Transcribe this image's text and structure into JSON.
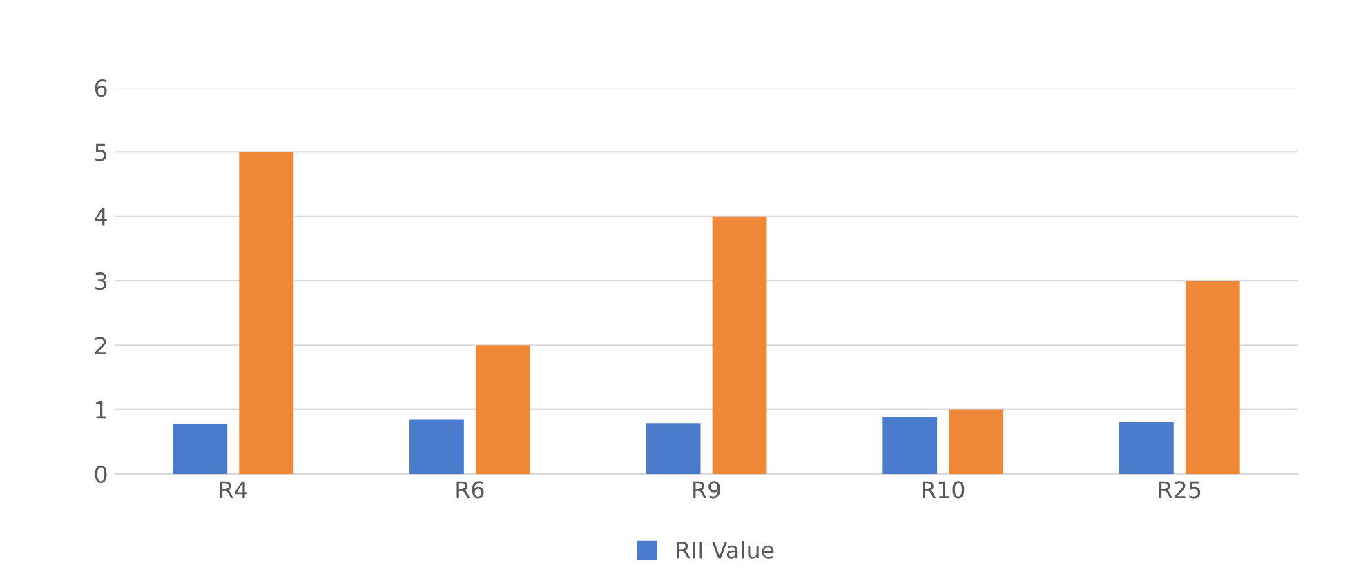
{
  "chart_data": {
    "type": "bar",
    "categories": [
      "R4",
      "R6",
      "R9",
      "R10",
      "R25"
    ],
    "series": [
      {
        "name": "RII Value",
        "color": "#4a7bcc",
        "values": [
          0.78,
          0.84,
          0.79,
          0.88,
          0.81
        ]
      },
      {
        "color": "#f0883a",
        "values": [
          5,
          2,
          4,
          1,
          3
        ]
      }
    ],
    "ylim": [
      0,
      6
    ],
    "yticks": [
      0,
      1,
      2,
      3,
      4,
      5,
      6
    ],
    "grid": "y",
    "legend": "bottom"
  }
}
